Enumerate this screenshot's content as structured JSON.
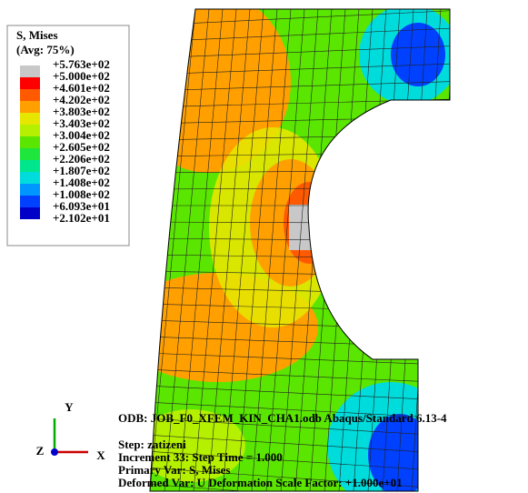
{
  "legend": {
    "title": "S, Mises",
    "subtitle": "(Avg: 75%)",
    "labels": [
      "+5.763e+02",
      "+5.000e+02",
      "+4.601e+02",
      "+4.202e+02",
      "+3.803e+02",
      "+3.403e+02",
      "+3.004e+02",
      "+2.605e+02",
      "+2.206e+02",
      "+1.807e+02",
      "+1.408e+02",
      "+1.008e+02",
      "+6.093e+01",
      "+2.102e+01"
    ],
    "colors": [
      "#c8c8c8",
      "#ff0000",
      "#ff5a00",
      "#ffa000",
      "#e6e600",
      "#b4f000",
      "#5ae600",
      "#1ee63c",
      "#00e68c",
      "#00dcdc",
      "#0096ff",
      "#0040ff",
      "#0000c8"
    ]
  },
  "triad": {
    "y": "Y",
    "z": "Z",
    "x": "X"
  },
  "info": [
    "ODB: JOB_F0_XFEM_KIN_CHA1.odb    Abaqus/Standard 6.13-4",
    "Step: zatizeni",
    "Increment     33: Step Time =    1.000",
    "Primary Var: S, Mises",
    "Deformed Var: U   Deformation Scale Factor: +1.000e+01"
  ]
}
